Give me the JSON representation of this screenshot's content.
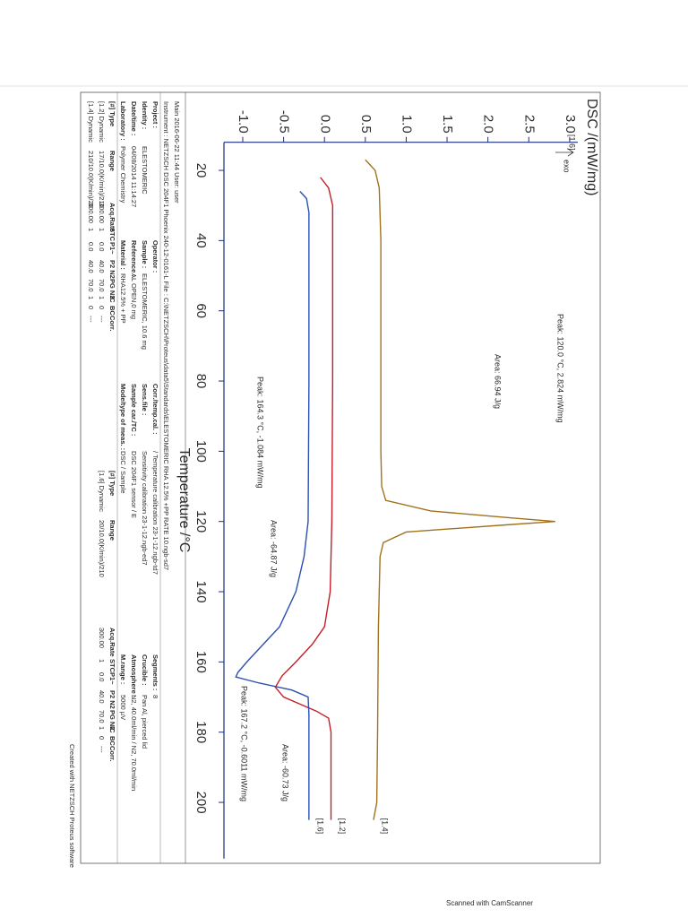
{
  "chart_data": {
    "type": "line",
    "x_label": "Temperature /°C",
    "y_label": "DSC /(mW/mg)",
    "axis_note": "[1.6]",
    "exo_label": "exo",
    "xlim": [
      12,
      216
    ],
    "xticks": [
      20,
      40,
      60,
      80,
      100,
      120,
      140,
      160,
      180,
      200
    ],
    "ylim": [
      -1.23,
      3.1
    ],
    "yticks": [
      {
        "value": -1,
        "label": "-1.0"
      },
      -0.5,
      {
        "value": 0,
        "label": "0.0"
      },
      0.5,
      {
        "value": 1,
        "label": "1.0"
      },
      1.5,
      {
        "value": 2,
        "label": "2.0"
      },
      2.5,
      {
        "value": 3,
        "label": "3.0"
      }
    ],
    "series": [
      {
        "name": "[1.4]",
        "color": "#a0721e",
        "x": [
          17,
          20,
          25,
          40,
          80,
          100,
          110,
          114,
          117,
          119,
          120,
          121,
          123,
          126,
          130,
          150,
          180,
          200,
          205
        ],
        "values": [
          0.5,
          0.62,
          0.67,
          0.69,
          0.69,
          0.69,
          0.7,
          0.75,
          1.3,
          2.3,
          2.824,
          2.2,
          1.0,
          0.72,
          0.68,
          0.66,
          0.65,
          0.64,
          0.6
        ]
      },
      {
        "name": "[1.2]",
        "color": "#c41e2a",
        "x": [
          22,
          25,
          30,
          40,
          80,
          120,
          140,
          150,
          155,
          160,
          164,
          167.2,
          170,
          172,
          174,
          176,
          180,
          200,
          205
        ],
        "values": [
          -0.05,
          0.05,
          0.1,
          0.1,
          0.1,
          0.09,
          0.07,
          0.0,
          -0.15,
          -0.35,
          -0.52,
          -0.6011,
          -0.5,
          -0.3,
          -0.1,
          0.05,
          0.08,
          0.08,
          0.08
        ]
      },
      {
        "name": "[1.6]",
        "color": "#2a4fb0",
        "x": [
          26,
          28,
          32,
          40,
          80,
          120,
          130,
          140,
          150,
          155,
          160,
          163,
          164.3,
          166,
          168,
          170,
          175,
          180,
          200,
          205
        ],
        "values": [
          -0.3,
          -0.22,
          -0.19,
          -0.19,
          -0.19,
          -0.2,
          -0.25,
          -0.35,
          -0.55,
          -0.75,
          -0.95,
          -1.06,
          -1.084,
          -0.8,
          -0.4,
          -0.2,
          -0.19,
          -0.19,
          -0.19,
          -0.19
        ]
      }
    ],
    "annotations": [
      {
        "text": "Peak: 120.0 °C, 2.824 mW/mg",
        "color": "#a0721e"
      },
      {
        "text": "Area: 66.94 J/g",
        "color": "#a0721e"
      },
      {
        "text": "Peak: 164.3 °C, -1.084 mW/mg",
        "color": "#2a4fb0"
      },
      {
        "text": "Area: -64.87 J/g",
        "color": "#2a4fb0"
      },
      {
        "text": "Area: -60.73 J/g",
        "color": "#c41e2a"
      },
      {
        "text": "Peak: 167.2 °C, -0.6011 mW/mg",
        "color": "#c41e2a"
      }
    ]
  },
  "header": {
    "main": "Main 2016-06-22 11:44 User: user",
    "instrument": "Instrument : NETZSCH DSC 204F1 Phoenix 240-12-0161-L File : C:\\NETZSCH\\Proteus\\data5\\Standards\\ELESTOMERIC RHA 12.5% +PP RATE 10.ngb-sd7"
  },
  "info": [
    [
      {
        "label": "Project :"
      },
      {
        "label": "Operator :"
      },
      {
        "label": "Corr./temp.cal. :",
        "value": "/ Temperature calibration 23-1-12.ngb-td7"
      },
      {
        "label": "Segments :",
        "value": "8"
      }
    ],
    [
      {
        "label": "Identity :",
        "value": "ELESTOMERIC"
      },
      {
        "label": "Sample :",
        "value": "ELESTOMERIC, 10.6 mg"
      },
      {
        "label": "Sens.file :",
        "value": "Sensitivity calibration 23-1-12.ngb-ed7"
      },
      {
        "label": "Crucible :",
        "value": "Pan Al, pierced lid"
      }
    ],
    [
      {
        "label": "Date/time :",
        "value": "04/08/2014 11:14:27"
      },
      {
        "label": "Reference :",
        "value": "AL OPEN,0 mg"
      },
      {
        "label": "Sample car./TC :",
        "value": "DSC 204F1 sensor / E"
      },
      {
        "label": "Atmosphere :",
        "value": "N2, 40.0ml/min / N2, 70.0ml/min"
      }
    ],
    [
      {
        "label": "Laboratory :",
        "value": "Polymer Chemistry"
      },
      {
        "label": "Material :",
        "value": "RHA12.5% + PP"
      },
      {
        "label": "Mode/type of meas. :",
        "value": "DSC / Sample"
      },
      {
        "label": "M.range :",
        "value": "5000 µV"
      }
    ]
  ],
  "segments": {
    "header": [
      "[#] Type",
      "Range",
      "Acq.Rate",
      "STC",
      "P1~",
      "P2 N2",
      "PG N2",
      "IC",
      "BC",
      "Corr."
    ],
    "left_rows": [
      [
        "[1.2] Dynamic",
        "17/10.0(K/min)/210",
        "300.00",
        "1",
        "0.0",
        "40.0",
        "70.0",
        "1",
        "0",
        "---"
      ],
      [
        "[1.4] Dynamic",
        "210/10.0(K/min)/20",
        "300.00",
        "1",
        "0.0",
        "40.0",
        "70.0",
        "1",
        "0",
        "---"
      ]
    ],
    "right_rows": [
      [
        "[1.6] Dynamic",
        "20/10.0(K/min)/210",
        "300.00",
        "1",
        "0.0",
        "40.0",
        "70.0",
        "1",
        "0",
        "---"
      ]
    ]
  },
  "footer": "Created with NETZSCH Proteus software",
  "scanner": "Scanned with CamScanner"
}
